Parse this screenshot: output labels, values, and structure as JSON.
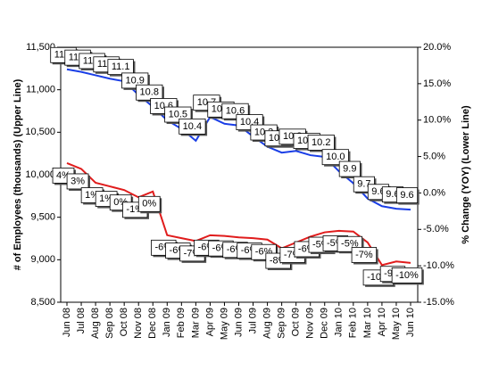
{
  "chart_data": {
    "type": "line",
    "y_label": "# of Employees  (thousands) (Upper Line)",
    "y2_label": "% Change (YOY) (Lower Line)",
    "categories": [
      "Jun 08",
      "Jul 08",
      "Aug 08",
      "Sep 08",
      "Oct 08",
      "Nov 08",
      "Dec 08",
      "Jan 09",
      "Feb 09",
      "Mar 09",
      "Apr 09",
      "May 09",
      "Jun 09",
      "Jul 09",
      "Aug 09",
      "Sep 09",
      "Oct 09",
      "Nov 09",
      "Dec 09",
      "Jan 10",
      "Feb 10",
      "Mar 10",
      "Apr 10",
      "May 10",
      "Jun 10"
    ],
    "ylim": [
      8500,
      11500
    ],
    "yticks": [
      {
        "value": 8500,
        "label": "8,500"
      },
      {
        "value": 9000,
        "label": "9,000"
      },
      {
        "value": 9500,
        "label": "9,500"
      },
      {
        "value": 10000,
        "label": "10,000"
      },
      {
        "value": 10500,
        "label": "10,500"
      },
      {
        "value": 11000,
        "label": "11,000"
      },
      {
        "value": 11500,
        "label": "11,500"
      }
    ],
    "y2lim": [
      -15,
      20
    ],
    "y2ticks": [
      {
        "value": -15,
        "label": "-15.0%"
      },
      {
        "value": -10,
        "label": "-10.0%"
      },
      {
        "value": -5,
        "label": "-5.0%"
      },
      {
        "value": 0,
        "label": "0.0%"
      },
      {
        "value": 5,
        "label": "5.0%"
      },
      {
        "value": 10,
        "label": "10.0%"
      },
      {
        "value": 15,
        "label": "15.0%"
      },
      {
        "value": 20,
        "label": "20.0%"
      }
    ],
    "series": [
      {
        "name": "Employees",
        "color": "#1a3ee6",
        "axis": "y",
        "values": [
          11240,
          11210,
          11170,
          11130,
          11100,
          10940,
          10800,
          10640,
          10540,
          10400,
          10680,
          10600,
          10580,
          10450,
          10330,
          10260,
          10280,
          10230,
          10210,
          10040,
          9900,
          9720,
          9630,
          9600,
          9590
        ],
        "value_labels": [
          "11.2",
          "11.2",
          "11.2",
          "11.1",
          "11.1",
          "10.9",
          "10.8",
          "10.6",
          "10.5",
          "10.4",
          "10.7",
          "10.6",
          "10.6",
          "10.4",
          "10.3",
          "10.3",
          "10.3",
          "10.2",
          "10.2",
          "10.0",
          "9.9",
          "9.7",
          "9.6",
          "9.6",
          "9.6"
        ]
      },
      {
        "name": "% Change (YOY)",
        "color": "#e01c1c",
        "axis": "y2",
        "values": [
          4.1,
          3.3,
          1.4,
          0.9,
          0.4,
          -0.6,
          0.2,
          -5.8,
          -6.2,
          -6.6,
          -5.8,
          -5.9,
          -6.1,
          -6.2,
          -6.4,
          -7.6,
          -6.8,
          -6.0,
          -5.4,
          -5.2,
          -5.3,
          -6.8,
          -9.9,
          -9.4,
          -9.6
        ],
        "value_labels": [
          "4%",
          "3%",
          "1%",
          "1%",
          "0%",
          "-1%",
          "0%",
          "-6%",
          "-6%",
          "-7%",
          "-6%",
          "-6%",
          "-6%",
          "-6%",
          "-6%",
          "-8%",
          "-7%",
          "-6%",
          "-5%",
          "-5%",
          "-5%",
          "-7%",
          "-10%",
          "-9%",
          "-10%"
        ]
      }
    ]
  }
}
